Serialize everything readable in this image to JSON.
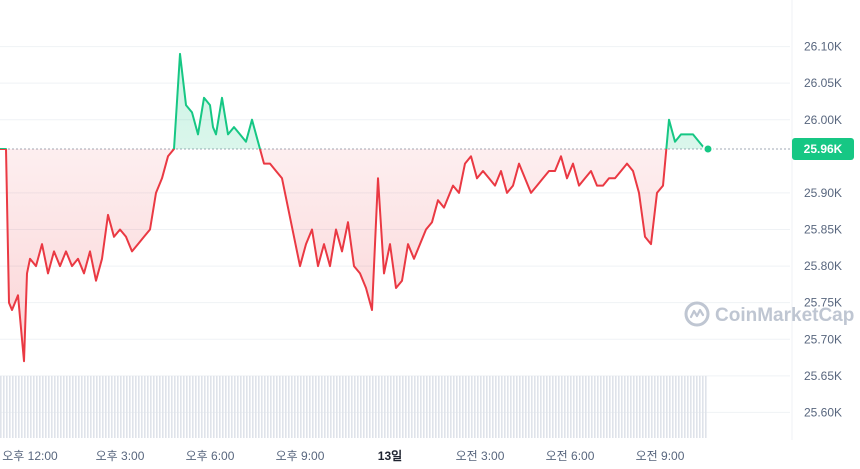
{
  "chart_data": {
    "type": "line",
    "title": "",
    "xlabel": "",
    "ylabel": "",
    "ylim": [
      25.55,
      26.15
    ],
    "y_unit": "K",
    "baseline": 25.96,
    "current_price": 25.96,
    "current_price_label": "25.96K",
    "y_ticks": [
      25.6,
      25.65,
      25.7,
      25.75,
      25.8,
      25.85,
      25.9,
      26.0,
      26.05,
      26.1
    ],
    "y_tick_labels": [
      "25.60K",
      "25.65K",
      "25.70K",
      "25.75K",
      "25.80K",
      "25.85K",
      "25.90K",
      "26.00K",
      "26.05K",
      "26.10K"
    ],
    "x_range": [
      0,
      26
    ],
    "x_ticks": [
      {
        "t": 1,
        "label": "오후 12:00",
        "bold": false
      },
      {
        "t": 4,
        "label": "오후 3:00",
        "bold": false
      },
      {
        "t": 7,
        "label": "오후 6:00",
        "bold": false
      },
      {
        "t": 10,
        "label": "오후 9:00",
        "bold": false
      },
      {
        "t": 13,
        "label": "13일",
        "bold": true
      },
      {
        "t": 16,
        "label": "오전 3:00",
        "bold": false
      },
      {
        "t": 19,
        "label": "오전 6:00",
        "bold": false
      },
      {
        "t": 22,
        "label": "오전 9:00",
        "bold": false
      }
    ],
    "up_color": "#16c784",
    "down_color": "#ea3943",
    "grid": true,
    "legend": "none",
    "series": [
      {
        "x": [
          0.0,
          0.2,
          0.3,
          0.4,
          0.6,
          0.8,
          0.9,
          1.0,
          1.2,
          1.4,
          1.6,
          1.8,
          2.0,
          2.2,
          2.4,
          2.6,
          2.8,
          3.0,
          3.2,
          3.4,
          3.6,
          3.8,
          4.0,
          4.2,
          4.4,
          4.6,
          4.8,
          5.0,
          5.2,
          5.4,
          5.6,
          5.8,
          6.0,
          6.2,
          6.4,
          6.6,
          6.8,
          7.0,
          7.1,
          7.2,
          7.4,
          7.6,
          7.8,
          8.0,
          8.2,
          8.4,
          8.6,
          8.8,
          9.0,
          9.2,
          9.4,
          9.6,
          9.8,
          10.0,
          10.2,
          10.4,
          10.6,
          10.8,
          11.0,
          11.2,
          11.4,
          11.6,
          11.8,
          12.0,
          12.2,
          12.4,
          12.6,
          12.8,
          13.0,
          13.2,
          13.4,
          13.6,
          13.8,
          14.0,
          14.2,
          14.4,
          14.6,
          14.8,
          15.0,
          15.1,
          15.3,
          15.5,
          15.7,
          15.9,
          16.1,
          16.3,
          16.5,
          16.7,
          16.9,
          17.1,
          17.3,
          17.5,
          17.7,
          17.9,
          18.1,
          18.3,
          18.5,
          18.7,
          18.9,
          19.1,
          19.3,
          19.5,
          19.7,
          19.9,
          20.1,
          20.3,
          20.5,
          20.7,
          20.9,
          21.1,
          21.3,
          21.5,
          21.7,
          21.9,
          22.1,
          22.3,
          22.5,
          22.7,
          22.9,
          23.1,
          23.3,
          23.5,
          23.6
        ],
        "values": [
          25.96,
          25.96,
          25.75,
          25.74,
          25.76,
          25.67,
          25.79,
          25.81,
          25.8,
          25.83,
          25.79,
          25.82,
          25.8,
          25.82,
          25.8,
          25.81,
          25.79,
          25.82,
          25.78,
          25.81,
          25.87,
          25.84,
          25.85,
          25.84,
          25.82,
          25.83,
          25.84,
          25.85,
          25.9,
          25.92,
          25.95,
          25.96,
          26.09,
          26.02,
          26.01,
          25.98,
          26.03,
          26.02,
          25.99,
          25.98,
          26.03,
          25.98,
          25.99,
          25.98,
          25.97,
          26.0,
          25.97,
          25.94,
          25.94,
          25.93,
          25.92,
          25.88,
          25.84,
          25.8,
          25.83,
          25.85,
          25.8,
          25.83,
          25.8,
          25.85,
          25.82,
          25.86,
          25.8,
          25.79,
          25.77,
          25.74,
          25.92,
          25.79,
          25.83,
          25.77,
          25.78,
          25.83,
          25.81,
          25.83,
          25.85,
          25.86,
          25.89,
          25.88,
          25.9,
          25.91,
          25.9,
          25.94,
          25.95,
          25.92,
          25.93,
          25.92,
          25.91,
          25.93,
          25.9,
          25.91,
          25.94,
          25.92,
          25.9,
          25.91,
          25.92,
          25.93,
          25.93,
          25.95,
          25.92,
          25.94,
          25.91,
          25.92,
          25.93,
          25.91,
          25.91,
          25.92,
          25.92,
          25.93,
          25.94,
          25.93,
          25.9,
          25.84,
          25.83,
          25.9,
          25.91,
          26.0,
          25.97,
          25.98,
          25.98,
          25.98,
          25.97,
          25.96,
          25.96
        ]
      }
    ],
    "volume": {
      "x_range": [
        0.0,
        23.6
      ],
      "level": 0.9
    }
  },
  "watermark": {
    "text": "CoinMarketCap",
    "icon": "coinmarketcap-logo-icon"
  }
}
